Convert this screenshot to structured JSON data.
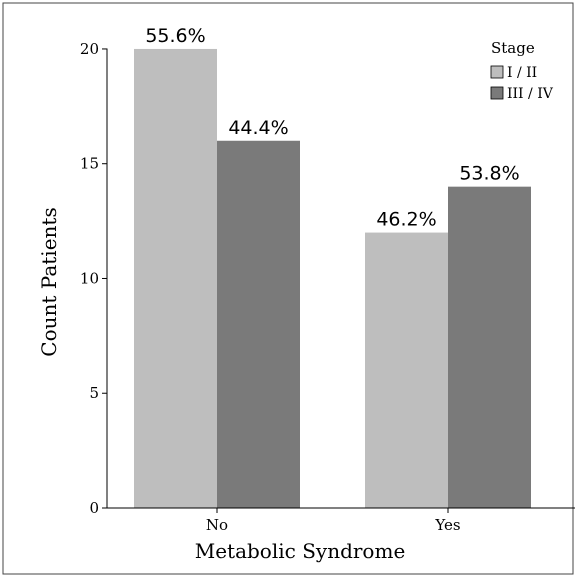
{
  "chart_data": {
    "type": "bar",
    "categories": [
      "No",
      "Yes"
    ],
    "series": [
      {
        "name": "I / II",
        "values": [
          20,
          12
        ],
        "labels": [
          "55.6%",
          "46.2%"
        ],
        "color": "#bebebe"
      },
      {
        "name": "III / IV",
        "values": [
          16,
          14
        ],
        "labels": [
          "44.4%",
          "53.8%"
        ],
        "color": "#7a7a7a"
      }
    ],
    "xlabel": "Metabolic Syndrome",
    "ylabel": "Count Patients",
    "ylim": [
      0,
      21
    ],
    "yticks": [
      "0",
      "5",
      "10",
      "15",
      "20"
    ],
    "legend": {
      "title": "Stage",
      "position": "top-right"
    },
    "grid": false
  }
}
